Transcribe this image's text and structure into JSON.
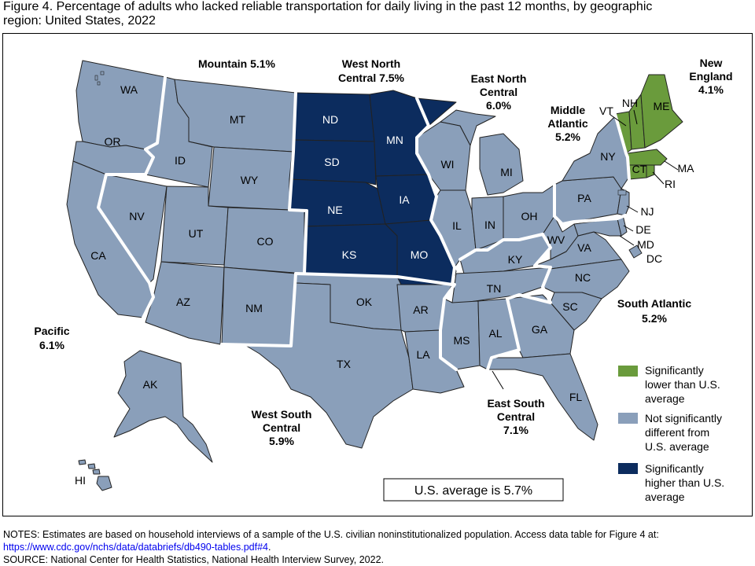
{
  "title": {
    "line1": "Figure 4. Percentage of adults who lacked reliable transportation for daily living in the past 12 months, by geographic",
    "line2": "region: United States, 2022"
  },
  "colors": {
    "significantly_lower": "#6a9b3c",
    "not_significant": "#8a9fba",
    "significantly_higher": "#0c2c5e",
    "region_border": "#ffffff",
    "state_border": "#222222"
  },
  "regions": [
    {
      "id": "mountain",
      "line1": "Mountain 5.1%",
      "line2": "",
      "category": "not_significant"
    },
    {
      "id": "west-north-central",
      "line1": "West North",
      "line2": "Central 7.5%",
      "category": "significantly_higher"
    },
    {
      "id": "east-north-central",
      "line1": "East North",
      "line2": "Central",
      "line3": "6.0%",
      "category": "not_significant"
    },
    {
      "id": "middle-atlantic",
      "line1": "Middle",
      "line2": "Atlantic",
      "line3": "5.2%",
      "category": "not_significant"
    },
    {
      "id": "new-england",
      "line1": "New",
      "line2": "England",
      "line3": "4.1%",
      "category": "significantly_lower"
    },
    {
      "id": "pacific",
      "line1": "Pacific",
      "line2": "6.1%",
      "category": "not_significant"
    },
    {
      "id": "west-south-central",
      "line1": "West South",
      "line2": "Central",
      "line3": "5.9%",
      "category": "not_significant"
    },
    {
      "id": "east-south-central",
      "line1": "East South",
      "line2": "Central",
      "line3": "7.1%",
      "category": "not_significant"
    },
    {
      "id": "south-atlantic",
      "line1": "South Atlantic",
      "line2": "5.2%",
      "category": "not_significant"
    }
  ],
  "states": {
    "WA": "WA",
    "OR": "OR",
    "CA": "CA",
    "NV": "NV",
    "ID": "ID",
    "MT": "MT",
    "WY": "WY",
    "UT": "UT",
    "CO": "CO",
    "AZ": "AZ",
    "NM": "NM",
    "ND": "ND",
    "SD": "SD",
    "NE": "NE",
    "KS": "KS",
    "MN": "MN",
    "IA": "IA",
    "MO": "MO",
    "WI": "WI",
    "IL": "IL",
    "MI": "MI",
    "IN": "IN",
    "OH": "OH",
    "KY": "KY",
    "TN": "TN",
    "MS": "MS",
    "AL": "AL",
    "OK": "OK",
    "TX": "TX",
    "AR": "AR",
    "LA": "LA",
    "GA": "GA",
    "FL": "FL",
    "SC": "SC",
    "NC": "NC",
    "VA": "VA",
    "WV": "WV",
    "PA": "PA",
    "NY": "NY",
    "NJ": "NJ",
    "DE": "DE",
    "MD": "MD",
    "DC": "DC",
    "VT": "VT",
    "NH": "NH",
    "ME": "ME",
    "MA": "MA",
    "CT": "CT",
    "RI": "RI",
    "AK": "AK",
    "HI": "HI"
  },
  "legend": [
    {
      "category": "significantly_lower",
      "line1": "Significantly",
      "line2": "lower than U.S.",
      "line3": "average"
    },
    {
      "category": "not_significant",
      "line1": "Not significantly",
      "line2": "different from",
      "line3": "U.S. average"
    },
    {
      "category": "significantly_higher",
      "line1": "Significantly",
      "line2": "higher than U.S.",
      "line3": "average"
    }
  ],
  "us_average_label": "U.S. average is 5.7%",
  "notes": {
    "line1": "NOTES: Estimates are based on household interviews of a sample of the U.S. civilian noninstitutionalized population. Access data table for Figure 4 at:",
    "link": "https://www.cdc.gov/nchs/data/databriefs/db490-tables.pdf#4",
    "link_suffix": ".",
    "source": "SOURCE: National Center for Health Statistics, National Health Interview Survey, 2022."
  }
}
